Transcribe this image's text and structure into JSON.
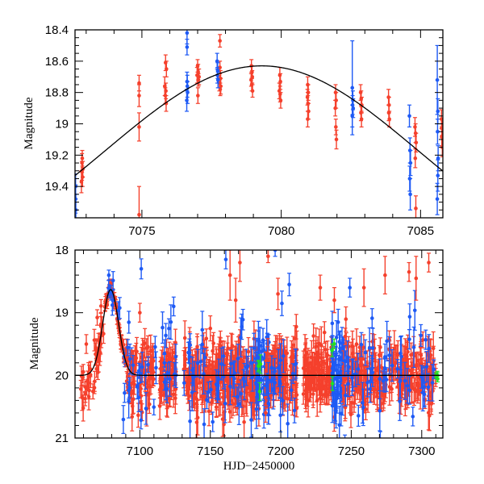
{
  "chart_data": [
    {
      "type": "scatter",
      "panel": "top",
      "title": "",
      "xlabel": "",
      "ylabel": "Magnitude",
      "xlim": [
        7072.6,
        7085.8
      ],
      "ylim": [
        19.6,
        18.4
      ],
      "y_inverted": true,
      "xticks": [
        7075,
        7080,
        7085
      ],
      "xtick_labels": [
        "7075",
        "7080",
        "7085"
      ],
      "x_minor_step": 1,
      "yticks": [
        18.4,
        18.6,
        18.8,
        19,
        19.2,
        19.4
      ],
      "ytick_labels": [
        "18.4",
        "18.6",
        "18.8",
        "19",
        "19.2",
        "19.4"
      ],
      "y_minor_step": 0.05,
      "model_curve": {
        "type": "gaussian",
        "baseline": 20.0,
        "peak_mag": 18.63,
        "peak_time": 7079.3,
        "sigma": 5.6,
        "color": "#000000"
      },
      "series": [
        {
          "name": "red",
          "color": "#f5402c",
          "points": [
            [
              7072.85,
              19.25,
              0.06
            ],
            [
              7072.85,
              19.3,
              0.06
            ],
            [
              7072.87,
              19.34,
              0.06
            ],
            [
              7072.88,
              19.29,
              0.05
            ],
            [
              7072.83,
              19.37,
              0.07
            ],
            [
              7072.86,
              19.22,
              0.05
            ],
            [
              7074.9,
              18.74,
              0.05
            ],
            [
              7074.9,
              18.82,
              0.07
            ],
            [
              7074.9,
              19.02,
              0.09
            ],
            [
              7074.9,
              19.58,
              0.18
            ],
            [
              7075.85,
              18.61,
              0.05
            ],
            [
              7075.88,
              18.65,
              0.05
            ],
            [
              7075.82,
              18.76,
              0.06
            ],
            [
              7075.86,
              18.79,
              0.05
            ],
            [
              7075.84,
              18.82,
              0.05
            ],
            [
              7075.87,
              18.87,
              0.05
            ],
            [
              7077.0,
              18.63,
              0.04
            ],
            [
              7077.02,
              18.67,
              0.05
            ],
            [
              7077.05,
              18.7,
              0.05
            ],
            [
              7077.03,
              18.72,
              0.04
            ],
            [
              7076.98,
              18.69,
              0.05
            ],
            [
              7077.01,
              18.82,
              0.05
            ],
            [
              7077.8,
              18.47,
              0.04
            ],
            [
              7077.8,
              18.64,
              0.04
            ],
            [
              7077.82,
              18.71,
              0.05
            ],
            [
              7077.78,
              18.74,
              0.05
            ],
            [
              7077.83,
              18.76,
              0.05
            ],
            [
              7077.81,
              18.78,
              0.04
            ],
            [
              7078.93,
              18.63,
              0.04
            ],
            [
              7078.95,
              18.67,
              0.04
            ],
            [
              7078.96,
              18.7,
              0.04
            ],
            [
              7078.92,
              18.72,
              0.04
            ],
            [
              7078.94,
              18.75,
              0.04
            ],
            [
              7078.97,
              18.79,
              0.04
            ],
            [
              7079.95,
              18.69,
              0.05
            ],
            [
              7079.97,
              18.73,
              0.05
            ],
            [
              7079.93,
              18.79,
              0.05
            ],
            [
              7079.96,
              18.81,
              0.05
            ],
            [
              7079.98,
              18.85,
              0.05
            ],
            [
              7080.95,
              18.75,
              0.05
            ],
            [
              7080.97,
              18.8,
              0.05
            ],
            [
              7080.94,
              18.83,
              0.05
            ],
            [
              7080.96,
              18.87,
              0.05
            ],
            [
              7080.98,
              18.92,
              0.05
            ],
            [
              7080.95,
              18.97,
              0.05
            ],
            [
              7081.95,
              18.8,
              0.05
            ],
            [
              7081.97,
              18.85,
              0.05
            ],
            [
              7081.94,
              18.9,
              0.05
            ],
            [
              7081.96,
              19.02,
              0.05
            ],
            [
              7081.98,
              19.1,
              0.06
            ],
            [
              7082.85,
              18.8,
              0.05
            ],
            [
              7082.87,
              18.84,
              0.05
            ],
            [
              7082.89,
              18.88,
              0.05
            ],
            [
              7082.86,
              18.93,
              0.05
            ],
            [
              7082.88,
              18.97,
              0.05
            ],
            [
              7083.85,
              18.83,
              0.05
            ],
            [
              7083.87,
              18.88,
              0.05
            ],
            [
              7083.86,
              18.93,
              0.05
            ],
            [
              7083.88,
              18.97,
              0.05
            ],
            [
              7084.8,
              19.02,
              0.06
            ],
            [
              7084.82,
              19.06,
              0.06
            ],
            [
              7084.84,
              19.12,
              0.06
            ],
            [
              7084.81,
              19.22,
              0.06
            ],
            [
              7084.83,
              19.54,
              0.08
            ],
            [
              7085.75,
              18.97,
              0.06
            ],
            [
              7085.77,
              19.03,
              0.06
            ],
            [
              7085.76,
              19.08,
              0.06
            ],
            [
              7085.78,
              19.15,
              0.06
            ]
          ]
        },
        {
          "name": "blue",
          "color": "#1e5af5",
          "points": [
            [
              7072.62,
              19.4,
              0.08
            ],
            [
              7072.62,
              19.48,
              0.09
            ],
            [
              7072.63,
              19.55,
              0.1
            ],
            [
              7076.62,
              18.42,
              0.07
            ],
            [
              7076.62,
              18.51,
              0.05
            ],
            [
              7076.62,
              18.73,
              0.06
            ],
            [
              7076.63,
              18.76,
              0.07
            ],
            [
              7076.64,
              18.8,
              0.07
            ],
            [
              7076.61,
              18.85,
              0.07
            ],
            [
              7077.7,
              18.6,
              0.05
            ],
            [
              7077.72,
              18.66,
              0.05
            ],
            [
              7077.71,
              18.69,
              0.05
            ],
            [
              7077.73,
              18.72,
              0.05
            ],
            [
              7082.55,
              18.77,
              0.3
            ],
            [
              7082.57,
              18.85,
              0.06
            ],
            [
              7082.56,
              18.88,
              0.06
            ],
            [
              7082.58,
              18.9,
              0.06
            ],
            [
              7082.55,
              18.95,
              0.07
            ],
            [
              7084.6,
              18.95,
              0.07
            ],
            [
              7084.62,
              19.17,
              0.08
            ],
            [
              7084.64,
              19.25,
              0.08
            ],
            [
              7084.61,
              19.35,
              0.08
            ],
            [
              7084.63,
              19.45,
              0.1
            ],
            [
              7085.6,
              18.72,
              0.22
            ],
            [
              7085.62,
              18.92,
              0.08
            ],
            [
              7085.61,
              19.05,
              0.08
            ],
            [
              7085.63,
              19.22,
              0.08
            ],
            [
              7085.62,
              19.33,
              0.1
            ],
            [
              7085.6,
              19.48,
              0.1
            ]
          ]
        }
      ]
    },
    {
      "type": "scatter",
      "panel": "bottom",
      "title": "",
      "xlabel": "HJD−2450000",
      "ylabel": "Magnitude",
      "xlim": [
        7054,
        7315
      ],
      "ylim": [
        21,
        18
      ],
      "y_inverted": true,
      "xticks": [
        7100,
        7150,
        7200,
        7250,
        7300
      ],
      "xtick_labels": [
        "7100",
        "7150",
        "7200",
        "7250",
        "7300"
      ],
      "x_minor_step": 10,
      "yticks": [
        18,
        19,
        20,
        21
      ],
      "ytick_labels": [
        "18",
        "19",
        "20",
        "21"
      ],
      "y_minor_step": 0.2,
      "model_curve": {
        "type": "gaussian",
        "baseline": 20.0,
        "peak_mag": 18.63,
        "peak_time": 7079.3,
        "sigma": 5.6,
        "color": "#000000"
      },
      "observing_blocks": [
        {
          "series": "red",
          "start": 7057,
          "end": 7067,
          "mean_mag": 20.25,
          "scatter": 0.22,
          "err": 0.15,
          "n": 18
        },
        {
          "series": "red",
          "start": 7067,
          "end": 7075,
          "mean_mag": 19.85,
          "scatter": 0.25,
          "err": 0.13,
          "n": 24,
          "follows_model": true
        },
        {
          "series": "red",
          "start": 7075,
          "end": 7090,
          "mean_mag": 18.9,
          "scatter": 0.06,
          "err": 0.06,
          "n": 60,
          "follows_model": true
        },
        {
          "series": "blue",
          "start": 7075,
          "end": 7095,
          "mean_mag": 19.0,
          "scatter": 0.15,
          "err": 0.12,
          "n": 16,
          "follows_model": true
        },
        {
          "series": "red",
          "start": 7090,
          "end": 7110,
          "mean_mag": 20.0,
          "scatter": 0.25,
          "err": 0.18,
          "n": 70
        },
        {
          "series": "blue",
          "start": 7088,
          "end": 7112,
          "mean_mag": 20.0,
          "scatter": 0.35,
          "err": 0.2,
          "n": 22
        },
        {
          "series": "red",
          "start": 7114,
          "end": 7126,
          "mean_mag": 20.0,
          "scatter": 0.25,
          "err": 0.18,
          "n": 55
        },
        {
          "series": "blue",
          "start": 7114,
          "end": 7126,
          "mean_mag": 19.9,
          "scatter": 0.35,
          "err": 0.2,
          "n": 14
        },
        {
          "series": "red",
          "start": 7131,
          "end": 7185,
          "mean_mag": 20.0,
          "scatter": 0.28,
          "err": 0.2,
          "n": 260
        },
        {
          "series": "blue",
          "start": 7131,
          "end": 7185,
          "mean_mag": 19.95,
          "scatter": 0.4,
          "err": 0.22,
          "n": 55
        },
        {
          "series": "blue",
          "start": 7183,
          "end": 7192,
          "mean_mag": 20.0,
          "scatter": 0.4,
          "err": 0.2,
          "n": 40
        },
        {
          "series": "green",
          "start": 7184,
          "end": 7186,
          "mean_mag": 20.0,
          "scatter": 0.2,
          "err": 0.1,
          "n": 4
        },
        {
          "series": "red",
          "start": 7189,
          "end": 7212,
          "mean_mag": 20.0,
          "scatter": 0.28,
          "err": 0.2,
          "n": 110
        },
        {
          "series": "blue",
          "start": 7189,
          "end": 7212,
          "mean_mag": 19.95,
          "scatter": 0.4,
          "err": 0.22,
          "n": 25
        },
        {
          "series": "red",
          "start": 7216,
          "end": 7238,
          "mean_mag": 20.0,
          "scatter": 0.28,
          "err": 0.2,
          "n": 95
        },
        {
          "series": "blue",
          "start": 7236,
          "end": 7245,
          "mean_mag": 20.0,
          "scatter": 0.35,
          "err": 0.2,
          "n": 55
        },
        {
          "series": "green",
          "start": 7236,
          "end": 7238,
          "mean_mag": 20.0,
          "scatter": 0.2,
          "err": 0.1,
          "n": 3
        },
        {
          "series": "red",
          "start": 7244,
          "end": 7310,
          "mean_mag": 20.0,
          "scatter": 0.27,
          "err": 0.2,
          "n": 230
        },
        {
          "series": "blue",
          "start": 7244,
          "end": 7310,
          "mean_mag": 19.95,
          "scatter": 0.38,
          "err": 0.22,
          "n": 60
        },
        {
          "series": "green",
          "start": 7310,
          "end": 7312,
          "mean_mag": 19.98,
          "scatter": 0.06,
          "err": 0.05,
          "n": 4
        }
      ],
      "outliers": [
        {
          "series": "red",
          "x": 7062,
          "mag": 19.5,
          "err": 0.15
        },
        {
          "series": "blue",
          "x": 7078,
          "mag": 18.4,
          "err": 0.08
        },
        {
          "series": "blue",
          "x": 7101,
          "mag": 18.3,
          "err": 0.16
        },
        {
          "series": "red",
          "x": 7100,
          "mag": 19.0,
          "err": 0.15
        },
        {
          "series": "blue",
          "x": 7124,
          "mag": 18.9,
          "err": 0.15
        },
        {
          "series": "red",
          "x": 7150,
          "mag": 19.25,
          "err": 0.2
        },
        {
          "series": "blue",
          "x": 7161,
          "mag": 18.15,
          "err": 0.15
        },
        {
          "series": "red",
          "x": 7164,
          "mag": 18.4,
          "err": 0.4
        },
        {
          "series": "red",
          "x": 7168,
          "mag": 18.8,
          "err": 0.35
        },
        {
          "series": "red",
          "x": 7171,
          "mag": 18.2,
          "err": 0.3
        },
        {
          "series": "blue",
          "x": 7196,
          "mag": 18.0,
          "err": 0.1
        },
        {
          "series": "red",
          "x": 7191,
          "mag": 18.1,
          "err": 0.1
        },
        {
          "series": "red",
          "x": 7198,
          "mag": 18.7,
          "err": 0.25
        },
        {
          "series": "blue",
          "x": 7206,
          "mag": 18.55,
          "err": 0.18
        },
        {
          "series": "red",
          "x": 7228,
          "mag": 18.6,
          "err": 0.2
        },
        {
          "series": "red",
          "x": 7238,
          "mag": 18.8,
          "err": 0.2
        },
        {
          "series": "blue",
          "x": 7249,
          "mag": 18.6,
          "err": 0.15
        },
        {
          "series": "red",
          "x": 7259,
          "mag": 18.6,
          "err": 0.3
        },
        {
          "series": "red",
          "x": 7274,
          "mag": 18.4,
          "err": 0.3
        },
        {
          "series": "red",
          "x": 7291,
          "mag": 18.35,
          "err": 0.15
        },
        {
          "series": "red",
          "x": 7296,
          "mag": 18.45,
          "err": 0.35
        },
        {
          "series": "red",
          "x": 7305,
          "mag": 18.2,
          "err": 0.15
        }
      ],
      "series": [
        {
          "name": "red",
          "color": "#f5402c"
        },
        {
          "name": "blue",
          "color": "#1e5af5"
        },
        {
          "name": "green",
          "color": "#22e022"
        }
      ]
    }
  ]
}
